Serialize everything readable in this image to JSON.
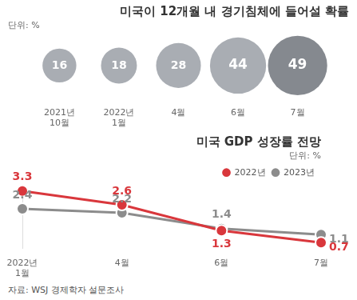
{
  "chart_data": [
    {
      "type": "bubble",
      "title": "미국이 12개월 내 경기침체에 들어설 확률",
      "subtitle": "단위: %",
      "categories": [
        "2021년 10월",
        "2022년 1월",
        "4월",
        "6월",
        "7월"
      ],
      "values": [
        16,
        18,
        28,
        44,
        49
      ],
      "colors": [
        "#a9adb3",
        "#a9adb3",
        "#a9adb3",
        "#a9adb3",
        "#85898f"
      ],
      "data_labels": true,
      "tick_labels": "x"
    },
    {
      "type": "line",
      "title": "미국 GDP 성장률 전망",
      "subtitle": "단위: %",
      "categories": [
        "2022년 1월",
        "4월",
        "6월",
        "7월"
      ],
      "series": [
        {
          "name": "2022년",
          "color": "#d9373c",
          "values": [
            3.3,
            2.6,
            1.3,
            0.7
          ]
        },
        {
          "name": "2023년",
          "color": "#8c8c8c",
          "values": [
            2.4,
            2.2,
            1.4,
            1.1
          ]
        }
      ],
      "ylim": [
        0.4,
        3.6
      ],
      "tick_labels": "x",
      "data_labels": true,
      "legend": "top-right",
      "marker": "circle"
    }
  ],
  "source": "자료: WSJ 경제학자 설문조사"
}
